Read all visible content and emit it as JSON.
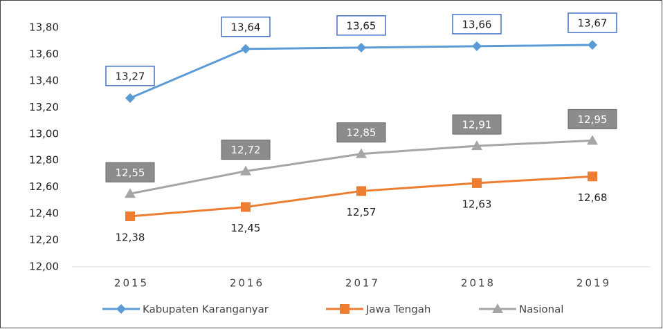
{
  "chart_data": {
    "type": "line",
    "categories": [
      "2015",
      "2016",
      "2017",
      "2018",
      "2019"
    ],
    "series": [
      {
        "name": "Kabupaten Karanganyar",
        "color": "#5b9bd5",
        "marker": "diamond",
        "values": [
          13.27,
          13.64,
          13.65,
          13.66,
          13.67
        ],
        "value_labels": [
          "13,27",
          "13,64",
          "13,65",
          "13,66",
          "13,67"
        ]
      },
      {
        "name": "Jawa Tengah",
        "color": "#ed7d31",
        "marker": "square",
        "values": [
          12.38,
          12.45,
          12.57,
          12.63,
          12.68
        ],
        "value_labels": [
          "12,38",
          "12,45",
          "12,57",
          "12,63",
          "12,68"
        ]
      },
      {
        "name": "Nasional",
        "color": "#a5a5a5",
        "marker": "triangle",
        "values": [
          12.55,
          12.72,
          12.85,
          12.91,
          12.95
        ],
        "value_labels": [
          "12,55",
          "12,72",
          "12,85",
          "12,91",
          "12,95"
        ]
      }
    ],
    "ylim": [
      12.0,
      13.8
    ],
    "yticks": [
      {
        "value": 12.0,
        "label": "12,00"
      },
      {
        "value": 12.2,
        "label": "12,20"
      },
      {
        "value": 12.4,
        "label": "12,40"
      },
      {
        "value": 12.6,
        "label": "12,60"
      },
      {
        "value": 12.8,
        "label": "12,80"
      },
      {
        "value": 13.0,
        "label": "13,00"
      },
      {
        "value": 13.2,
        "label": "13,20"
      },
      {
        "value": 13.4,
        "label": "13,40"
      },
      {
        "value": 13.6,
        "label": "13,60"
      },
      {
        "value": 13.8,
        "label": "13,80"
      }
    ],
    "grid": false,
    "legend": "bottom"
  }
}
